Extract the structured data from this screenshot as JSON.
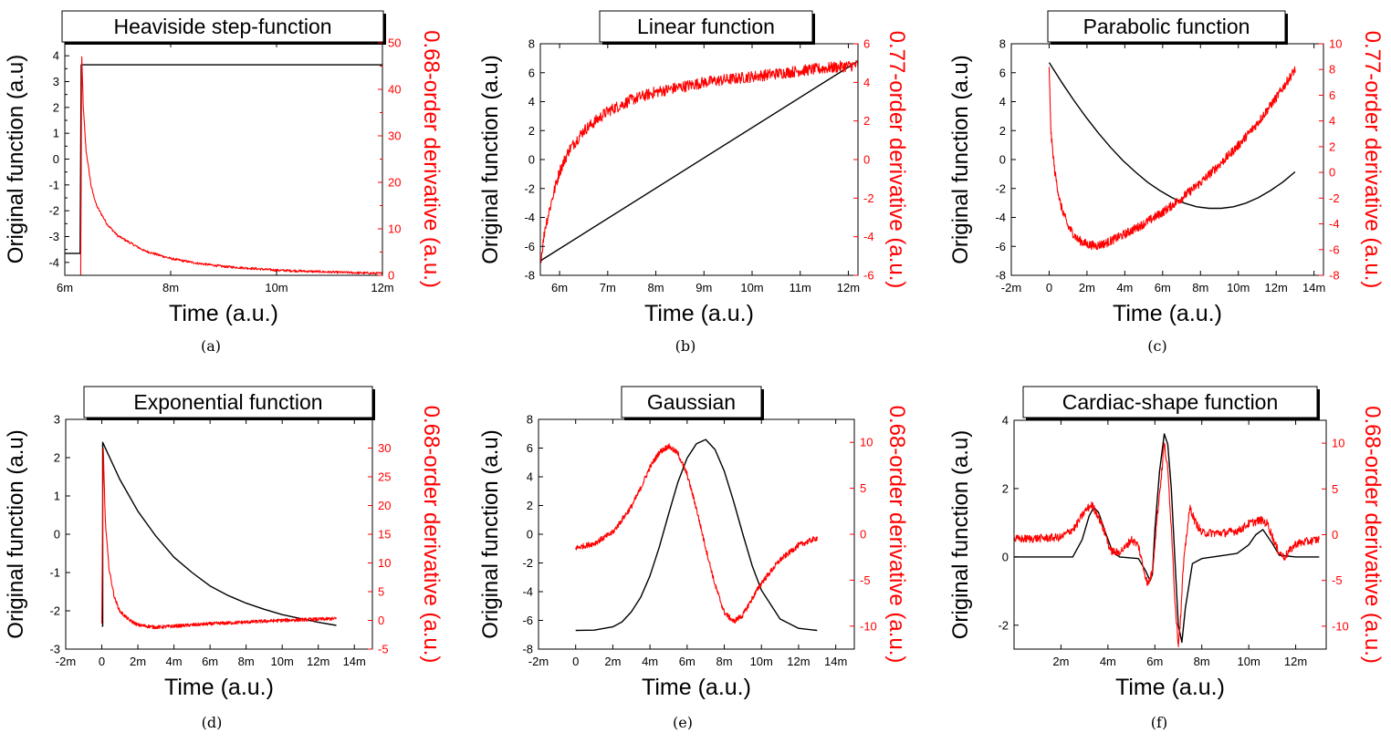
{
  "figure": {
    "panel_titles": [
      "Heaviside step-function",
      "Linear function",
      "Parabolic function",
      "Exponential function",
      "Gaussian",
      "Cardiac-shape function"
    ],
    "captions": [
      "(a)",
      "(b)",
      "(c)",
      "(d)",
      "(e)",
      "(f)"
    ]
  },
  "colors": {
    "original": "#000000",
    "derivative": "#ff0000"
  },
  "chart_data": [
    {
      "type": "line",
      "title": "Heaviside step-function",
      "caption": "(a)",
      "xlabel": "Time (a.u.)",
      "ylabel": "Original function (a.u)",
      "y2label": "0.68-order derivative (a.u.)",
      "xlim": [
        6,
        12
      ],
      "ylim": [
        -4.5,
        4.5
      ],
      "y2lim": [
        0,
        50
      ],
      "xticks": [
        6,
        8,
        10,
        12
      ],
      "xtick_labels": [
        "6m",
        "8m",
        "10m",
        "12m"
      ],
      "yticks": [
        -4,
        -3,
        -2,
        -1,
        0,
        1,
        2,
        3,
        4
      ],
      "yticks_minor": true,
      "y2ticks": [
        0,
        10,
        20,
        30,
        40,
        50
      ],
      "y2ticks_minor": true,
      "series": [
        {
          "role": "original",
          "axis": "left",
          "x": [
            6,
            6.29,
            6.29,
            6.31,
            6.31,
            12
          ],
          "y": [
            -3.65,
            -3.65,
            -3.65,
            3.65,
            3.65,
            3.65
          ]
        },
        {
          "role": "derivative",
          "axis": "right",
          "noise": 0.25,
          "x": [
            6.3,
            6.32,
            6.35,
            6.4,
            6.5,
            6.6,
            6.8,
            7,
            7.5,
            8,
            8.5,
            9,
            10,
            11,
            12
          ],
          "y": [
            0,
            47,
            36,
            27,
            19,
            15,
            11,
            8.5,
            5.3,
            3.6,
            2.6,
            1.9,
            1.1,
            0.7,
            0.4
          ]
        }
      ]
    },
    {
      "type": "line",
      "title": "Linear function",
      "caption": "(b)",
      "xlabel": "Time (a.u.)",
      "ylabel": "Original function (a.u)",
      "y2label": "0.77-order derivative (a.u.)",
      "xlim": [
        5.6,
        12.2
      ],
      "ylim": [
        -8,
        8
      ],
      "y2lim": [
        -6,
        6
      ],
      "xticks": [
        6,
        7,
        8,
        9,
        10,
        11,
        12
      ],
      "xtick_labels": [
        "6m",
        "7m",
        "8m",
        "9m",
        "10m",
        "11m",
        "12m"
      ],
      "yticks": [
        -8,
        -6,
        -4,
        -2,
        0,
        2,
        4,
        6,
        8
      ],
      "y2ticks": [
        -6,
        -4,
        -2,
        0,
        2,
        4,
        6
      ],
      "series": [
        {
          "role": "original",
          "axis": "left",
          "x": [
            5.6,
            12.2
          ],
          "y": [
            -7,
            6.8
          ]
        },
        {
          "role": "derivative",
          "axis": "right",
          "noise": 0.3,
          "x": [
            5.6,
            5.7,
            5.85,
            6,
            6.2,
            6.5,
            7,
            7.5,
            8,
            9,
            10,
            11,
            12.2
          ],
          "y": [
            -5.4,
            -3.5,
            -2,
            -0.6,
            0.5,
            1.5,
            2.5,
            3.1,
            3.5,
            4,
            4.3,
            4.6,
            4.9
          ]
        }
      ]
    },
    {
      "type": "line",
      "title": "Parabolic function",
      "caption": "(c)",
      "xlabel": "Time (a.u.)",
      "ylabel": "Original function (a.u)",
      "y2label": "0.77-order derivative (a.u.)",
      "xlim": [
        -2,
        14.5
      ],
      "ylim": [
        -8,
        8
      ],
      "y2lim": [
        -8,
        10
      ],
      "xticks": [
        -2,
        0,
        2,
        4,
        6,
        8,
        10,
        12,
        14
      ],
      "xtick_labels": [
        "-2m",
        "0",
        "2m",
        "4m",
        "6m",
        "8m",
        "10m",
        "12m",
        "14m"
      ],
      "yticks": [
        -8,
        -6,
        -4,
        -2,
        0,
        2,
        4,
        6,
        8
      ],
      "y2ticks": [
        -8,
        -6,
        -4,
        -2,
        0,
        2,
        4,
        6,
        8,
        10
      ],
      "series": [
        {
          "role": "original",
          "axis": "left",
          "x": [
            0,
            0.65,
            1.3,
            1.95,
            2.6,
            3.25,
            3.9,
            4.55,
            5.2,
            5.85,
            6.5,
            7.15,
            7.8,
            8.45,
            9.1,
            9.75,
            10.4,
            11.05,
            11.7,
            12.35,
            13
          ],
          "y": [
            6.7,
            5.37,
            4.1,
            2.92,
            1.84,
            0.84,
            -0.07,
            -0.85,
            -1.56,
            -2.14,
            -2.64,
            -3.01,
            -3.26,
            -3.37,
            -3.37,
            -3.26,
            -3.01,
            -2.64,
            -2.14,
            -1.56,
            -0.85
          ]
        },
        {
          "role": "derivative",
          "axis": "right",
          "noise": 0.35,
          "x": [
            0,
            0.1,
            0.3,
            0.6,
            1,
            1.5,
            2,
            2.5,
            3,
            4,
            5,
            6,
            7,
            8,
            9,
            10,
            11,
            12,
            13
          ],
          "y": [
            8,
            3,
            0,
            -2.5,
            -4.2,
            -5.2,
            -5.6,
            -5.7,
            -5.5,
            -4.8,
            -4,
            -3.1,
            -2,
            -0.8,
            0.6,
            2.1,
            3.8,
            5.8,
            8
          ]
        }
      ]
    },
    {
      "type": "line",
      "title": "Exponential function",
      "caption": "(d)",
      "xlabel": "Time (a.u.)",
      "ylabel": "Original function (a.u)",
      "y2label": "0.68-order derivative (a.u.)",
      "xlim": [
        -2,
        15
      ],
      "ylim": [
        -3,
        3
      ],
      "y2lim": [
        -5,
        35
      ],
      "xticks": [
        -2,
        0,
        2,
        4,
        6,
        8,
        10,
        12,
        14
      ],
      "xtick_labels": [
        "-2m",
        "0",
        "2m",
        "4m",
        "6m",
        "8m",
        "10m",
        "12m",
        "14m"
      ],
      "yticks": [
        -3,
        -2,
        -1,
        0,
        1,
        2,
        3
      ],
      "y2ticks": [
        -5,
        0,
        5,
        10,
        15,
        20,
        25,
        30
      ],
      "series": [
        {
          "role": "original",
          "axis": "left",
          "x": [
            0,
            0.05,
            0.05,
            1,
            2,
            3,
            4,
            5,
            6,
            7,
            8,
            9,
            10,
            11,
            12,
            13
          ],
          "y": [
            -2.4,
            -2.4,
            2.4,
            1.43,
            0.6,
            -0.05,
            -0.6,
            -1,
            -1.35,
            -1.6,
            -1.8,
            -1.96,
            -2.1,
            -2.2,
            -2.3,
            -2.38
          ]
        },
        {
          "role": "derivative",
          "axis": "right",
          "noise": 0.3,
          "x": [
            0,
            0.08,
            0.2,
            0.4,
            0.7,
            1,
            1.5,
            2,
            3,
            4,
            6,
            8,
            10,
            13
          ],
          "y": [
            -0.5,
            30,
            17,
            9,
            4,
            1.6,
            0.1,
            -0.8,
            -1.2,
            -1,
            -0.6,
            -0.3,
            0,
            0.3
          ]
        }
      ]
    },
    {
      "type": "line",
      "title": "Gaussian",
      "caption": "(e)",
      "xlabel": "Time (a.u.)",
      "ylabel": "Original function (a.u)",
      "y2label": "0.68-order derivative (a.u.)",
      "xlim": [
        -2,
        15
      ],
      "ylim": [
        -8,
        8
      ],
      "y2lim": [
        -12.5,
        12.5
      ],
      "xticks": [
        -2,
        0,
        2,
        4,
        6,
        8,
        10,
        12,
        14
      ],
      "xtick_labels": [
        "-2m",
        "0",
        "2m",
        "4m",
        "6m",
        "8m",
        "10m",
        "12m",
        "14m"
      ],
      "yticks": [
        -8,
        -6,
        -4,
        -2,
        0,
        2,
        4,
        6,
        8
      ],
      "y2ticks": [
        -10,
        -5,
        0,
        5,
        10
      ],
      "series": [
        {
          "role": "original",
          "axis": "left",
          "x": [
            0,
            1,
            2,
            2.5,
            3,
            3.5,
            4,
            4.5,
            5,
            5.5,
            6,
            6.5,
            7,
            7.5,
            8,
            8.5,
            9,
            9.5,
            10,
            11,
            12,
            13
          ],
          "y": [
            -6.7,
            -6.68,
            -6.45,
            -6.1,
            -5.4,
            -4.4,
            -2.9,
            -0.9,
            1.4,
            3.6,
            5.3,
            6.3,
            6.6,
            5.9,
            4.4,
            2.3,
            0,
            -2.2,
            -3.9,
            -5.9,
            -6.55,
            -6.7
          ]
        },
        {
          "role": "derivative",
          "axis": "right",
          "noise": 0.3,
          "x": [
            0,
            1,
            2,
            3,
            3.5,
            4,
            4.5,
            5,
            5.5,
            6,
            6.5,
            7,
            7.5,
            8,
            8.5,
            9,
            9.5,
            10,
            11,
            12,
            13
          ],
          "y": [
            -1.5,
            -1,
            0.2,
            3,
            5,
            7.3,
            8.9,
            9.6,
            8.8,
            6.5,
            2.8,
            -1.5,
            -5.5,
            -8.5,
            -9.5,
            -8.8,
            -7,
            -5.3,
            -2.8,
            -1.2,
            -0.4
          ]
        }
      ]
    },
    {
      "type": "line",
      "title": "Cardiac-shape function",
      "caption": "(f)",
      "xlabel": "Time (a.u.)",
      "ylabel": "Original function (a.u)",
      "y2label": "0.68-order derivative (a.u.)",
      "xlim": [
        0,
        13.3
      ],
      "ylim": [
        -2.7,
        4
      ],
      "y2lim": [
        -12.5,
        12.5
      ],
      "xticks": [
        2,
        4,
        6,
        8,
        10,
        12
      ],
      "xtick_labels": [
        "2m",
        "4m",
        "6m",
        "8m",
        "10m",
        "12m"
      ],
      "yticks": [
        -2,
        0,
        2,
        4
      ],
      "y2ticks": [
        -10,
        -5,
        0,
        5,
        10
      ],
      "series": [
        {
          "role": "original",
          "axis": "left",
          "x": [
            0,
            2.5,
            2.9,
            3.2,
            3.4,
            3.6,
            3.9,
            4.2,
            4.5,
            5.3,
            5.6,
            5.8,
            5.9,
            6,
            6.2,
            6.4,
            6.55,
            6.7,
            6.85,
            7,
            7.15,
            7.3,
            7.6,
            8,
            9.5,
            10,
            10.3,
            10.6,
            11,
            11.3,
            12,
            13
          ],
          "y": [
            0,
            0,
            0.5,
            1.2,
            1.45,
            1.3,
            0.7,
            0.15,
            0,
            -0.05,
            -0.4,
            -0.7,
            -0.5,
            0.8,
            2.5,
            3.6,
            3.3,
            2,
            0,
            -2,
            -2.5,
            -1.5,
            -0.2,
            -0.05,
            0.1,
            0.35,
            0.65,
            0.8,
            0.4,
            0.05,
            0,
            0
          ]
        },
        {
          "role": "derivative",
          "axis": "right",
          "noise": 0.45,
          "x": [
            0,
            2,
            2.6,
            3,
            3.3,
            3.6,
            3.9,
            4.1,
            4.4,
            4.7,
            5,
            5.3,
            5.5,
            5.7,
            5.9,
            6.1,
            6.3,
            6.4,
            6.55,
            6.7,
            6.85,
            7,
            7.1,
            7.2,
            7.35,
            7.5,
            7.7,
            8,
            9,
            9.6,
            10,
            10.5,
            10.8,
            11.2,
            11.5,
            12,
            13
          ],
          "y": [
            -0.5,
            -0.3,
            0.8,
            2.5,
            3.3,
            2,
            0,
            -1.7,
            -2,
            -1.5,
            -0.5,
            -1.2,
            -3.5,
            -5.5,
            -4,
            2,
            7,
            10,
            7,
            1,
            -7,
            -12,
            -9,
            -4,
            0,
            3,
            1.5,
            0.2,
            0.2,
            0.5,
            1.2,
            1.6,
            1.2,
            -1.5,
            -2.5,
            -1,
            -0.5
          ]
        }
      ]
    }
  ]
}
